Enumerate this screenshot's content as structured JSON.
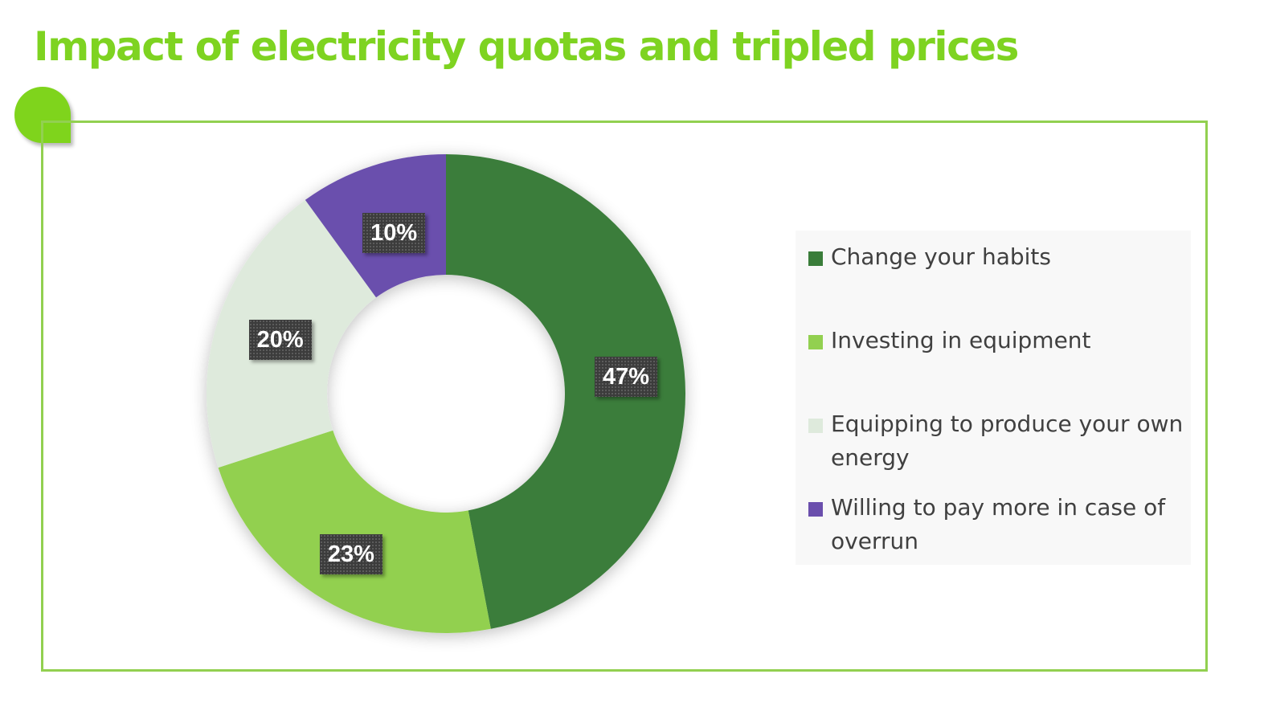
{
  "page": {
    "title": "Impact of electricity quotas and tripled prices",
    "title_color": "#7ed321",
    "frame_color": "#92d050",
    "badge_color": "#7fd41c"
  },
  "chart_data": {
    "type": "pie",
    "style": "donut",
    "title": "",
    "categories": [
      "Change your habits",
      "Investing in equipment",
      "Equipping to produce your own energy",
      "Willing to pay more in case of overrun"
    ],
    "values": [
      47,
      23,
      20,
      10
    ],
    "labels": [
      "47%",
      "23%",
      "20%",
      "10%"
    ],
    "colors": [
      "#3a7d3a",
      "#92d050",
      "#deeadc",
      "#6b4fad"
    ],
    "legend_position": "right",
    "data_label_background": "#3c3c3c"
  }
}
